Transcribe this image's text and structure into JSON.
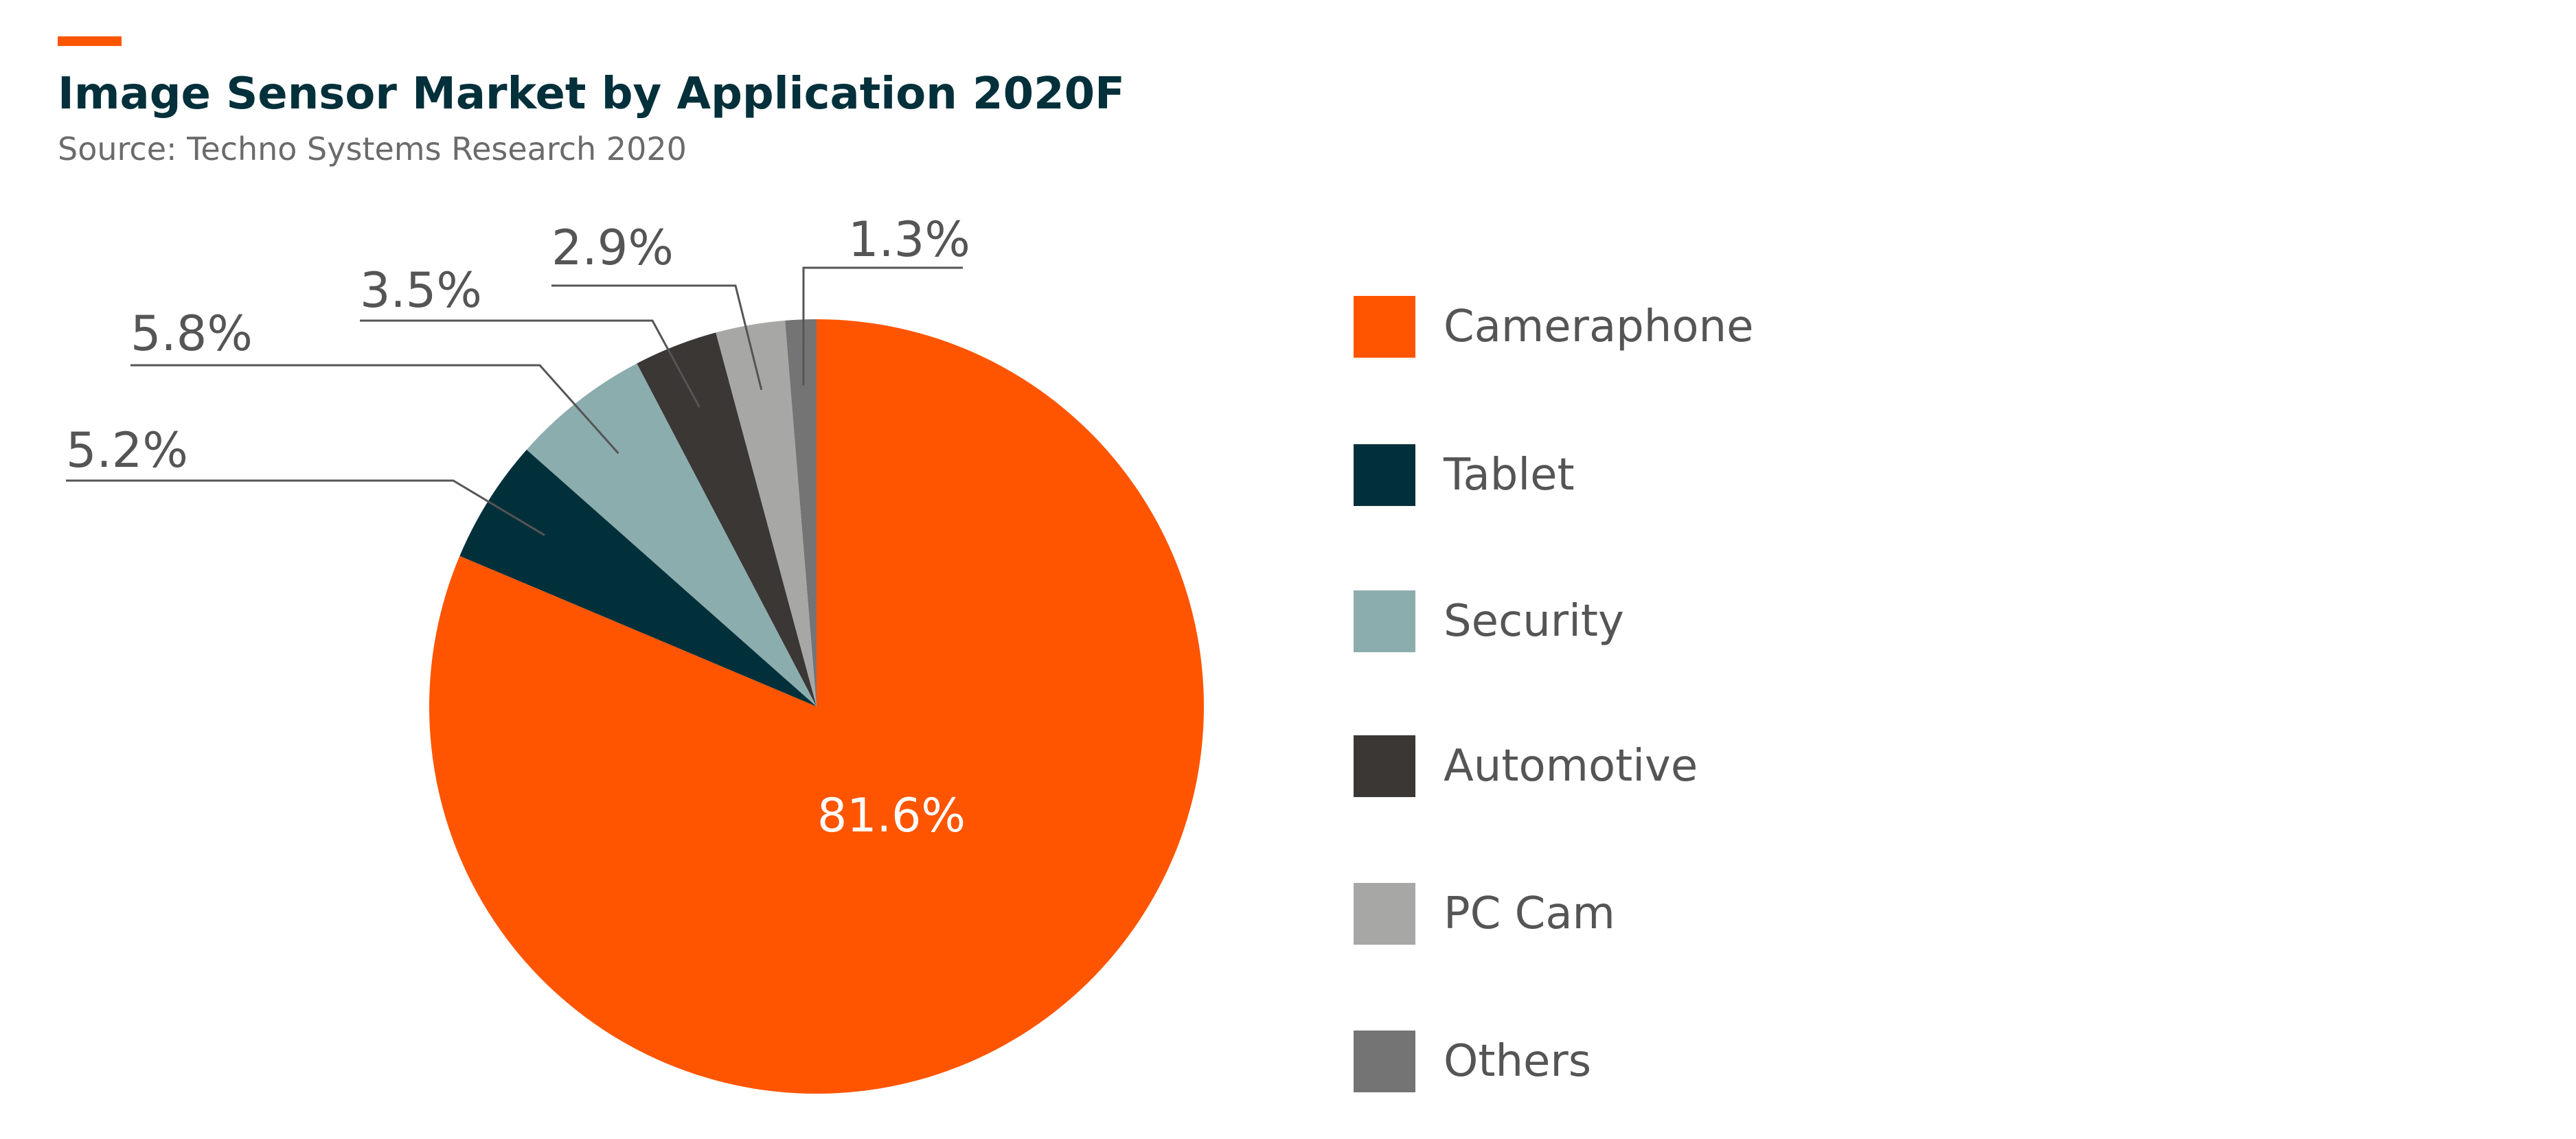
{
  "header": {
    "title": "Image Sensor Market by Application 2020F",
    "subtitle": "Source: Techno Systems Research 2020",
    "accent_color": "#ff5500"
  },
  "chart_data": {
    "type": "pie",
    "title": "Image Sensor Market by Application 2020F",
    "start_angle": "12 o'clock, clockwise",
    "legend_position": "right",
    "slices": [
      {
        "label": "Cameraphone",
        "value": 81.6,
        "display": "81.6%",
        "color": "#ff5500"
      },
      {
        "label": "Tablet",
        "value": 5.2,
        "display": "5.2%",
        "color": "#02303a"
      },
      {
        "label": "Security",
        "value": 5.8,
        "display": "5.8%",
        "color": "#8cadae"
      },
      {
        "label": "Automotive",
        "value": 3.5,
        "display": "3.5%",
        "color": "#3a3735"
      },
      {
        "label": "PC Cam",
        "value": 2.9,
        "display": "2.9%",
        "color": "#a7a7a5"
      },
      {
        "label": "Others",
        "value": 1.3,
        "display": "1.3%",
        "color": "#747474"
      }
    ]
  }
}
